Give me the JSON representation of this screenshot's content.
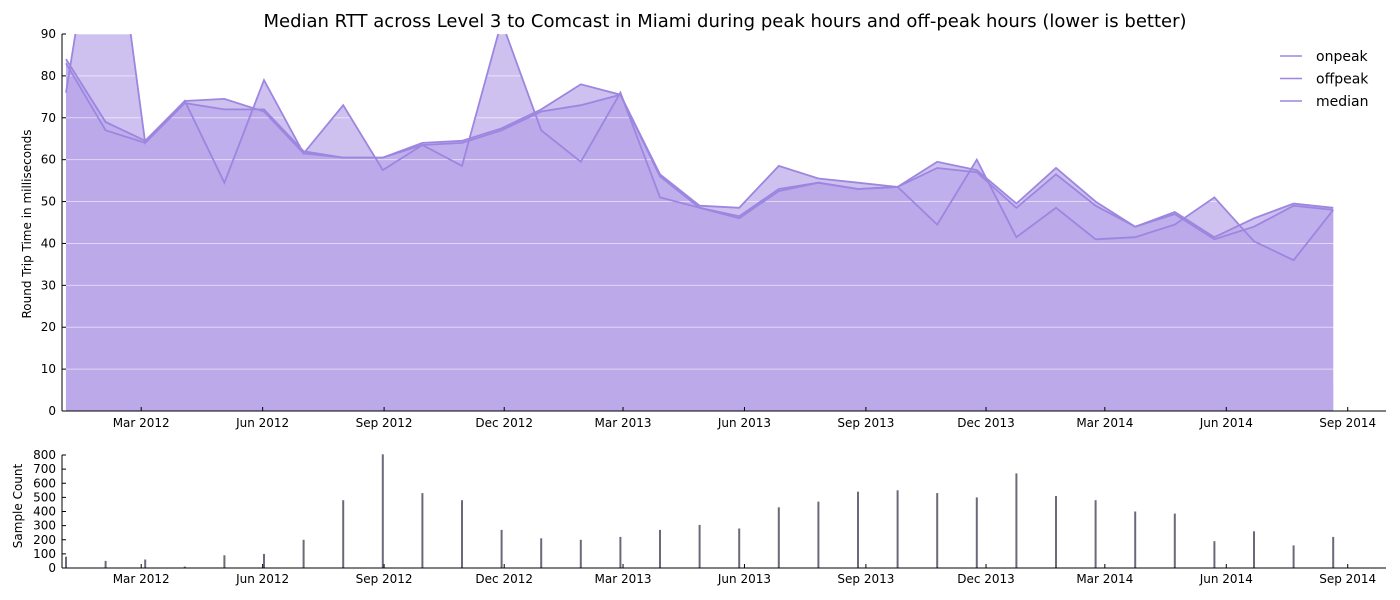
{
  "chart_data": [
    {
      "type": "area",
      "title": "Median RTT across Level 3 to Comcast in Miami during peak hours and off-peak hours (lower is better)",
      "ylabel": "Round Trip Time in milliseconds",
      "xlabel": "",
      "ylim": [
        0,
        90
      ],
      "yticks": [
        0,
        10,
        20,
        30,
        40,
        50,
        60,
        70,
        80,
        90
      ],
      "xlim": [
        "2012-01-01",
        "2014-09-30"
      ],
      "xticks": [
        "2012-03-01",
        "2012-06-01",
        "2012-09-01",
        "2012-12-01",
        "2013-03-01",
        "2013-06-01",
        "2013-09-01",
        "2013-12-01",
        "2014-03-01",
        "2014-06-01",
        "2014-09-01"
      ],
      "xtick_labels": [
        "Mar 2012",
        "Jun 2012",
        "Sep 2012",
        "Dec 2012",
        "Mar 2013",
        "Jun 2013",
        "Sep 2013",
        "Dec 2013",
        "Mar 2014",
        "Jun 2014",
        "Sep 2014"
      ],
      "legend_position": "top-right",
      "grid": "horizontal, white",
      "colors": {
        "fill": "#b9a6ea",
        "line": "#9d86e0",
        "axis": "#000000",
        "grid": "#ffffff"
      },
      "x": [
        "2012-01-04",
        "2012-02-03",
        "2012-03-04",
        "2012-04-03",
        "2012-05-03",
        "2012-06-02",
        "2012-07-02",
        "2012-08-01",
        "2012-08-31",
        "2012-09-30",
        "2012-10-30",
        "2012-11-29",
        "2012-12-29",
        "2013-01-28",
        "2013-02-27",
        "2013-03-29",
        "2013-04-28",
        "2013-05-28",
        "2013-06-27",
        "2013-07-27",
        "2013-08-26",
        "2013-09-25",
        "2013-10-25",
        "2013-11-24",
        "2013-12-24",
        "2014-01-23",
        "2014-02-22",
        "2014-03-24",
        "2014-04-23",
        "2014-05-23",
        "2014-06-22",
        "2014-07-22",
        "2014-08-21"
      ],
      "series": [
        {
          "name": "onpeak",
          "values": [
            76,
            135,
            64,
            74,
            54.5,
            79,
            61.5,
            73,
            57.5,
            63.5,
            58.5,
            93,
            67,
            59.5,
            76,
            51,
            48.5,
            46,
            52.5,
            54.5,
            53,
            53.5,
            44.5,
            60,
            41.5,
            48.5,
            41,
            41.5,
            44.5,
            51,
            40.5,
            36,
            48
          ]
        },
        {
          "name": "offpeak",
          "values": [
            84,
            69,
            64.5,
            74,
            74.5,
            71.5,
            61.5,
            60.5,
            60.5,
            64,
            64.5,
            67.5,
            72,
            78,
            75.5,
            56.5,
            49,
            48.5,
            58.5,
            55.5,
            54.5,
            53.5,
            59.5,
            57.5,
            49.5,
            58,
            50,
            44,
            47.5,
            41.5,
            46,
            49.5,
            48.5
          ]
        },
        {
          "name": "median",
          "values": [
            83,
            67,
            64,
            73.5,
            72,
            72,
            62,
            60.5,
            60.5,
            63.5,
            64,
            67,
            71.5,
            73,
            75.5,
            56,
            48.5,
            46.5,
            53,
            54.5,
            53,
            53.5,
            58,
            57,
            48.5,
            56.5,
            49,
            44,
            47,
            41,
            44,
            49,
            48
          ]
        }
      ]
    },
    {
      "type": "bar",
      "ylabel": "Sample Count",
      "ylim": [
        0,
        800
      ],
      "yticks": [
        0,
        100,
        200,
        300,
        400,
        500,
        600,
        700,
        800
      ],
      "xtick_labels": [
        "Mar 2012",
        "Jun 2012",
        "Sep 2012",
        "Dec 2012",
        "Mar 2013",
        "Jun 2013",
        "Sep 2013",
        "Dec 2013",
        "Mar 2014",
        "Jun 2014",
        "Sep 2014"
      ],
      "colors": {
        "bar": "#6a6a7a",
        "axis": "#000000"
      },
      "x": [
        "2012-01-04",
        "2012-02-03",
        "2012-03-04",
        "2012-04-03",
        "2012-05-03",
        "2012-06-02",
        "2012-07-02",
        "2012-08-01",
        "2012-08-31",
        "2012-09-30",
        "2012-10-30",
        "2012-11-29",
        "2012-12-29",
        "2013-01-28",
        "2013-02-27",
        "2013-03-29",
        "2013-04-28",
        "2013-05-28",
        "2013-06-27",
        "2013-07-27",
        "2013-08-26",
        "2013-09-25",
        "2013-10-25",
        "2013-11-24",
        "2013-12-24",
        "2014-01-23",
        "2014-02-22",
        "2014-03-24",
        "2014-04-23",
        "2014-05-23",
        "2014-06-22",
        "2014-07-22",
        "2014-08-21"
      ],
      "values": [
        80,
        50,
        60,
        10,
        90,
        100,
        200,
        480,
        805,
        530,
        480,
        270,
        210,
        200,
        220,
        270,
        305,
        280,
        430,
        470,
        540,
        550,
        530,
        500,
        670,
        510,
        480,
        400,
        385,
        190,
        260,
        160,
        220
      ]
    }
  ]
}
